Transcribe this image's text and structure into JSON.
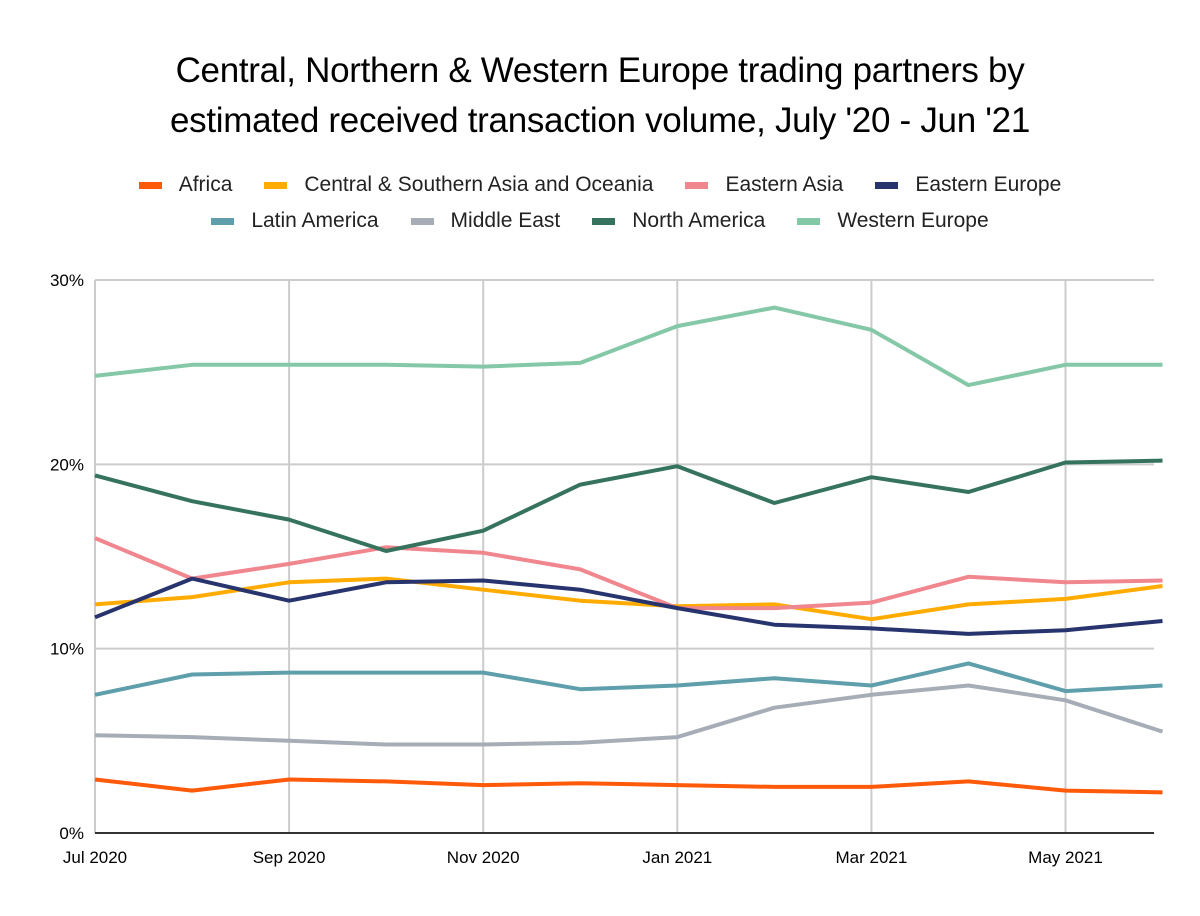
{
  "chart_data": {
    "type": "line",
    "title": [
      "Central, Northern & Western Europe trading partners by",
      "estimated received transaction volume, July '20 - Jun '21"
    ],
    "xlabel": "",
    "ylabel": "",
    "x": [
      "Jul 2020",
      "Aug 2020",
      "Sep 2020",
      "Oct 2020",
      "Nov 2020",
      "Dec 2020",
      "Jan 2021",
      "Feb 2021",
      "Mar 2021",
      "Apr 2021",
      "May 2021",
      "Jun 2021"
    ],
    "x_tick_labels": [
      "Jul 2020",
      "Sep 2020",
      "Nov 2020",
      "Jan 2021",
      "Mar 2021",
      "May 2021"
    ],
    "y_tick_labels": [
      "0%",
      "10%",
      "20%",
      "30%"
    ],
    "ylim": [
      0,
      30
    ],
    "y_unit": "%",
    "grid": true,
    "legend_position": "top",
    "series": [
      {
        "name": "Africa",
        "color": "#ff5a0a",
        "values": [
          2.9,
          2.3,
          2.9,
          2.8,
          2.6,
          2.7,
          2.6,
          2.5,
          2.5,
          2.8,
          2.3,
          2.2
        ]
      },
      {
        "name": "Central & Southern Asia and Oceania",
        "color": "#ffab00",
        "values": [
          12.4,
          12.8,
          13.6,
          13.8,
          13.2,
          12.6,
          12.3,
          12.4,
          11.6,
          12.4,
          12.7,
          13.4
        ]
      },
      {
        "name": "Eastern Asia",
        "color": "#f0868e",
        "values": [
          16.0,
          13.8,
          14.6,
          15.5,
          15.2,
          14.3,
          12.2,
          12.2,
          12.5,
          13.9,
          13.6,
          13.7
        ]
      },
      {
        "name": "Eastern Europe",
        "color": "#27346e",
        "values": [
          11.7,
          13.8,
          12.6,
          13.6,
          13.7,
          13.2,
          12.2,
          11.3,
          11.1,
          10.8,
          11.0,
          11.5
        ]
      },
      {
        "name": "Latin America",
        "color": "#5e9fab",
        "values": [
          7.5,
          8.6,
          8.7,
          8.7,
          8.7,
          7.8,
          8.0,
          8.4,
          8.0,
          9.2,
          7.7,
          8.0
        ]
      },
      {
        "name": "Middle East",
        "color": "#a6adb6",
        "values": [
          5.3,
          5.2,
          5.0,
          4.8,
          4.8,
          4.9,
          5.2,
          6.8,
          7.5,
          8.0,
          7.2,
          5.5
        ]
      },
      {
        "name": "North America",
        "color": "#36735f",
        "values": [
          19.4,
          18.0,
          17.0,
          15.3,
          16.4,
          18.9,
          19.9,
          17.9,
          19.3,
          18.5,
          20.1,
          20.2
        ]
      },
      {
        "name": "Western Europe",
        "color": "#85c8a8",
        "values": [
          24.8,
          25.4,
          25.4,
          25.4,
          25.3,
          25.5,
          27.5,
          28.5,
          27.3,
          24.3,
          25.4,
          25.4
        ]
      }
    ],
    "legend_rows": [
      [
        0,
        1,
        2,
        3
      ],
      [
        4,
        5,
        6,
        7
      ]
    ]
  }
}
